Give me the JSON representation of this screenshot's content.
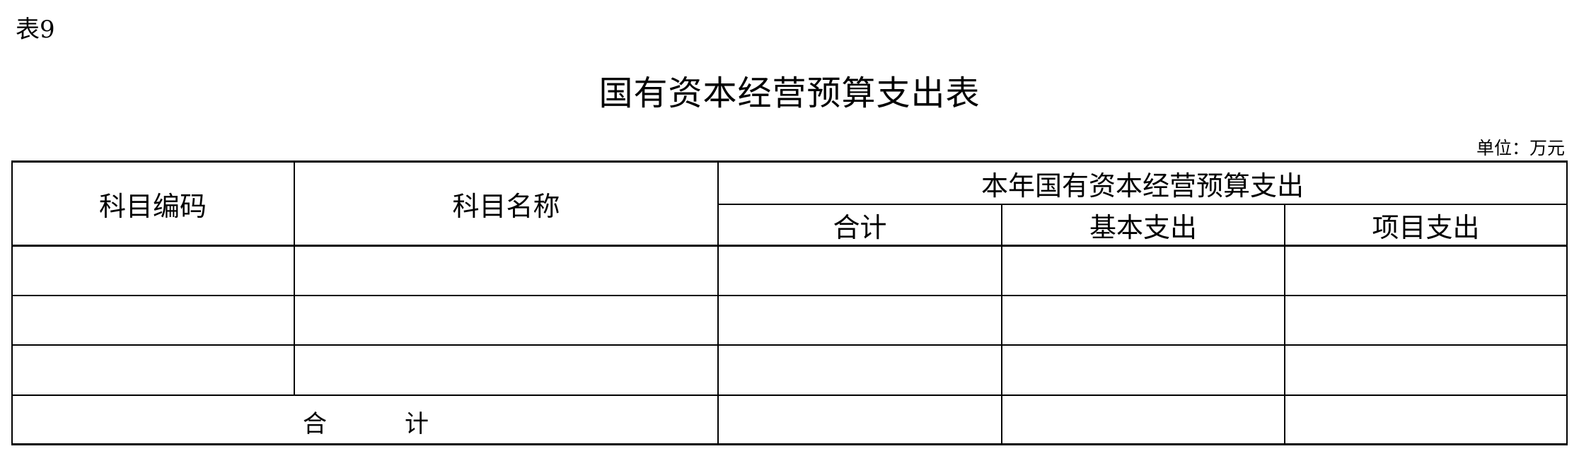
{
  "label": "表9",
  "title": "国有资本经营预算支出表",
  "unit": "单位：万元",
  "table": {
    "headers": {
      "code": "科目编码",
      "name": "科目名称",
      "group": "本年国有资本经营预算支出",
      "total": "合计",
      "basic": "基本支出",
      "project": "项目支出"
    },
    "rows": [
      [
        "",
        "",
        "",
        "",
        ""
      ],
      [
        "",
        "",
        "",
        "",
        ""
      ],
      [
        "",
        "",
        "",
        "",
        ""
      ]
    ],
    "total_row": {
      "label_1": "合",
      "label_2": "计",
      "total": "",
      "basic": "",
      "project": ""
    }
  }
}
